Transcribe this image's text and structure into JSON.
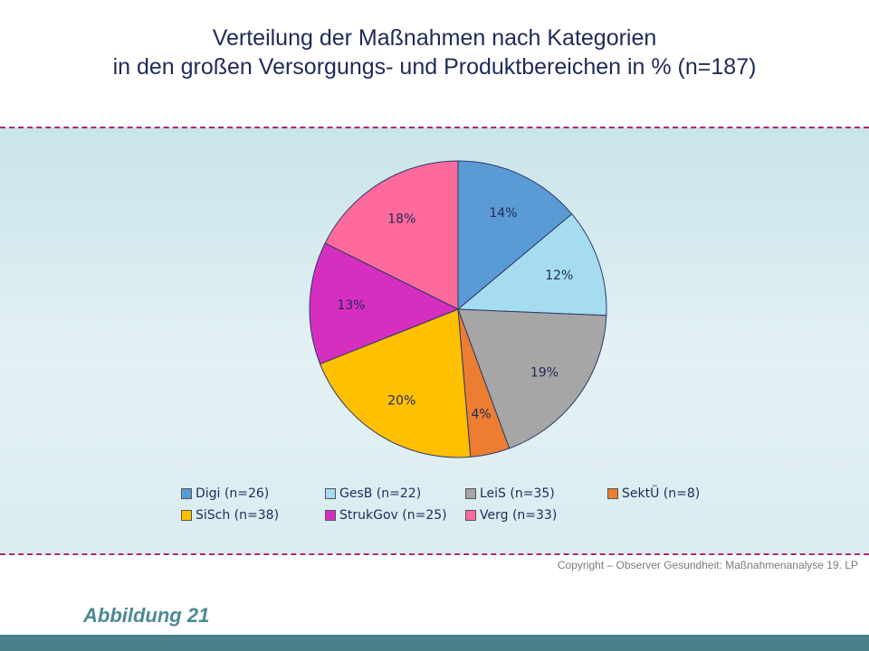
{
  "title_lines": [
    "Verteilung der Maßnahmen nach Kategorien",
    "in den großen Versorgungs- und Produktbereichen in % (n=187)"
  ],
  "copyright": "Copyright – Observer Gesundheit: Maßnahmenanalyse 19. LP",
  "figure_label": "Abbildung 21",
  "colors": {
    "divider": "#b0246e",
    "footer_bar": "#4a7f8c"
  },
  "chart_data": {
    "type": "pie",
    "title": "Verteilung der Maßnahmen nach Kategorien in den großen Versorgungs- und Produktbereichen in % (n=187)",
    "total_n": 187,
    "start_angle_deg": 0,
    "direction": "clockwise",
    "legend_position": "bottom",
    "slices": [
      {
        "name": "Digi",
        "n": 26,
        "value": 14,
        "label": "14%",
        "legend": "Digi (n=26)",
        "color": "#5b9bd5"
      },
      {
        "name": "GesB",
        "n": 22,
        "value": 12,
        "label": "12%",
        "legend": "GesB (n=22)",
        "color": "#a6dcef"
      },
      {
        "name": "LeiS",
        "n": 35,
        "value": 19,
        "label": "19%",
        "legend": "LeiS (n=35)",
        "color": "#a6a6a6"
      },
      {
        "name": "SektÜ",
        "n": 8,
        "value": 4,
        "label": "4%",
        "legend": "SektÜ (n=8)",
        "color": "#ed7d31"
      },
      {
        "name": "SiSch",
        "n": 38,
        "value": 20,
        "label": "20%",
        "legend": "SiSch (n=38)",
        "color": "#ffc000"
      },
      {
        "name": "StrukGov",
        "n": 25,
        "value": 13,
        "label": "13%",
        "legend": "StrukGov (n=25)",
        "color": "#d62fc0"
      },
      {
        "name": "Verg",
        "n": 33,
        "value": 18,
        "label": "18%",
        "legend": "Verg (n=33)",
        "color": "#ff6a9c"
      }
    ]
  }
}
